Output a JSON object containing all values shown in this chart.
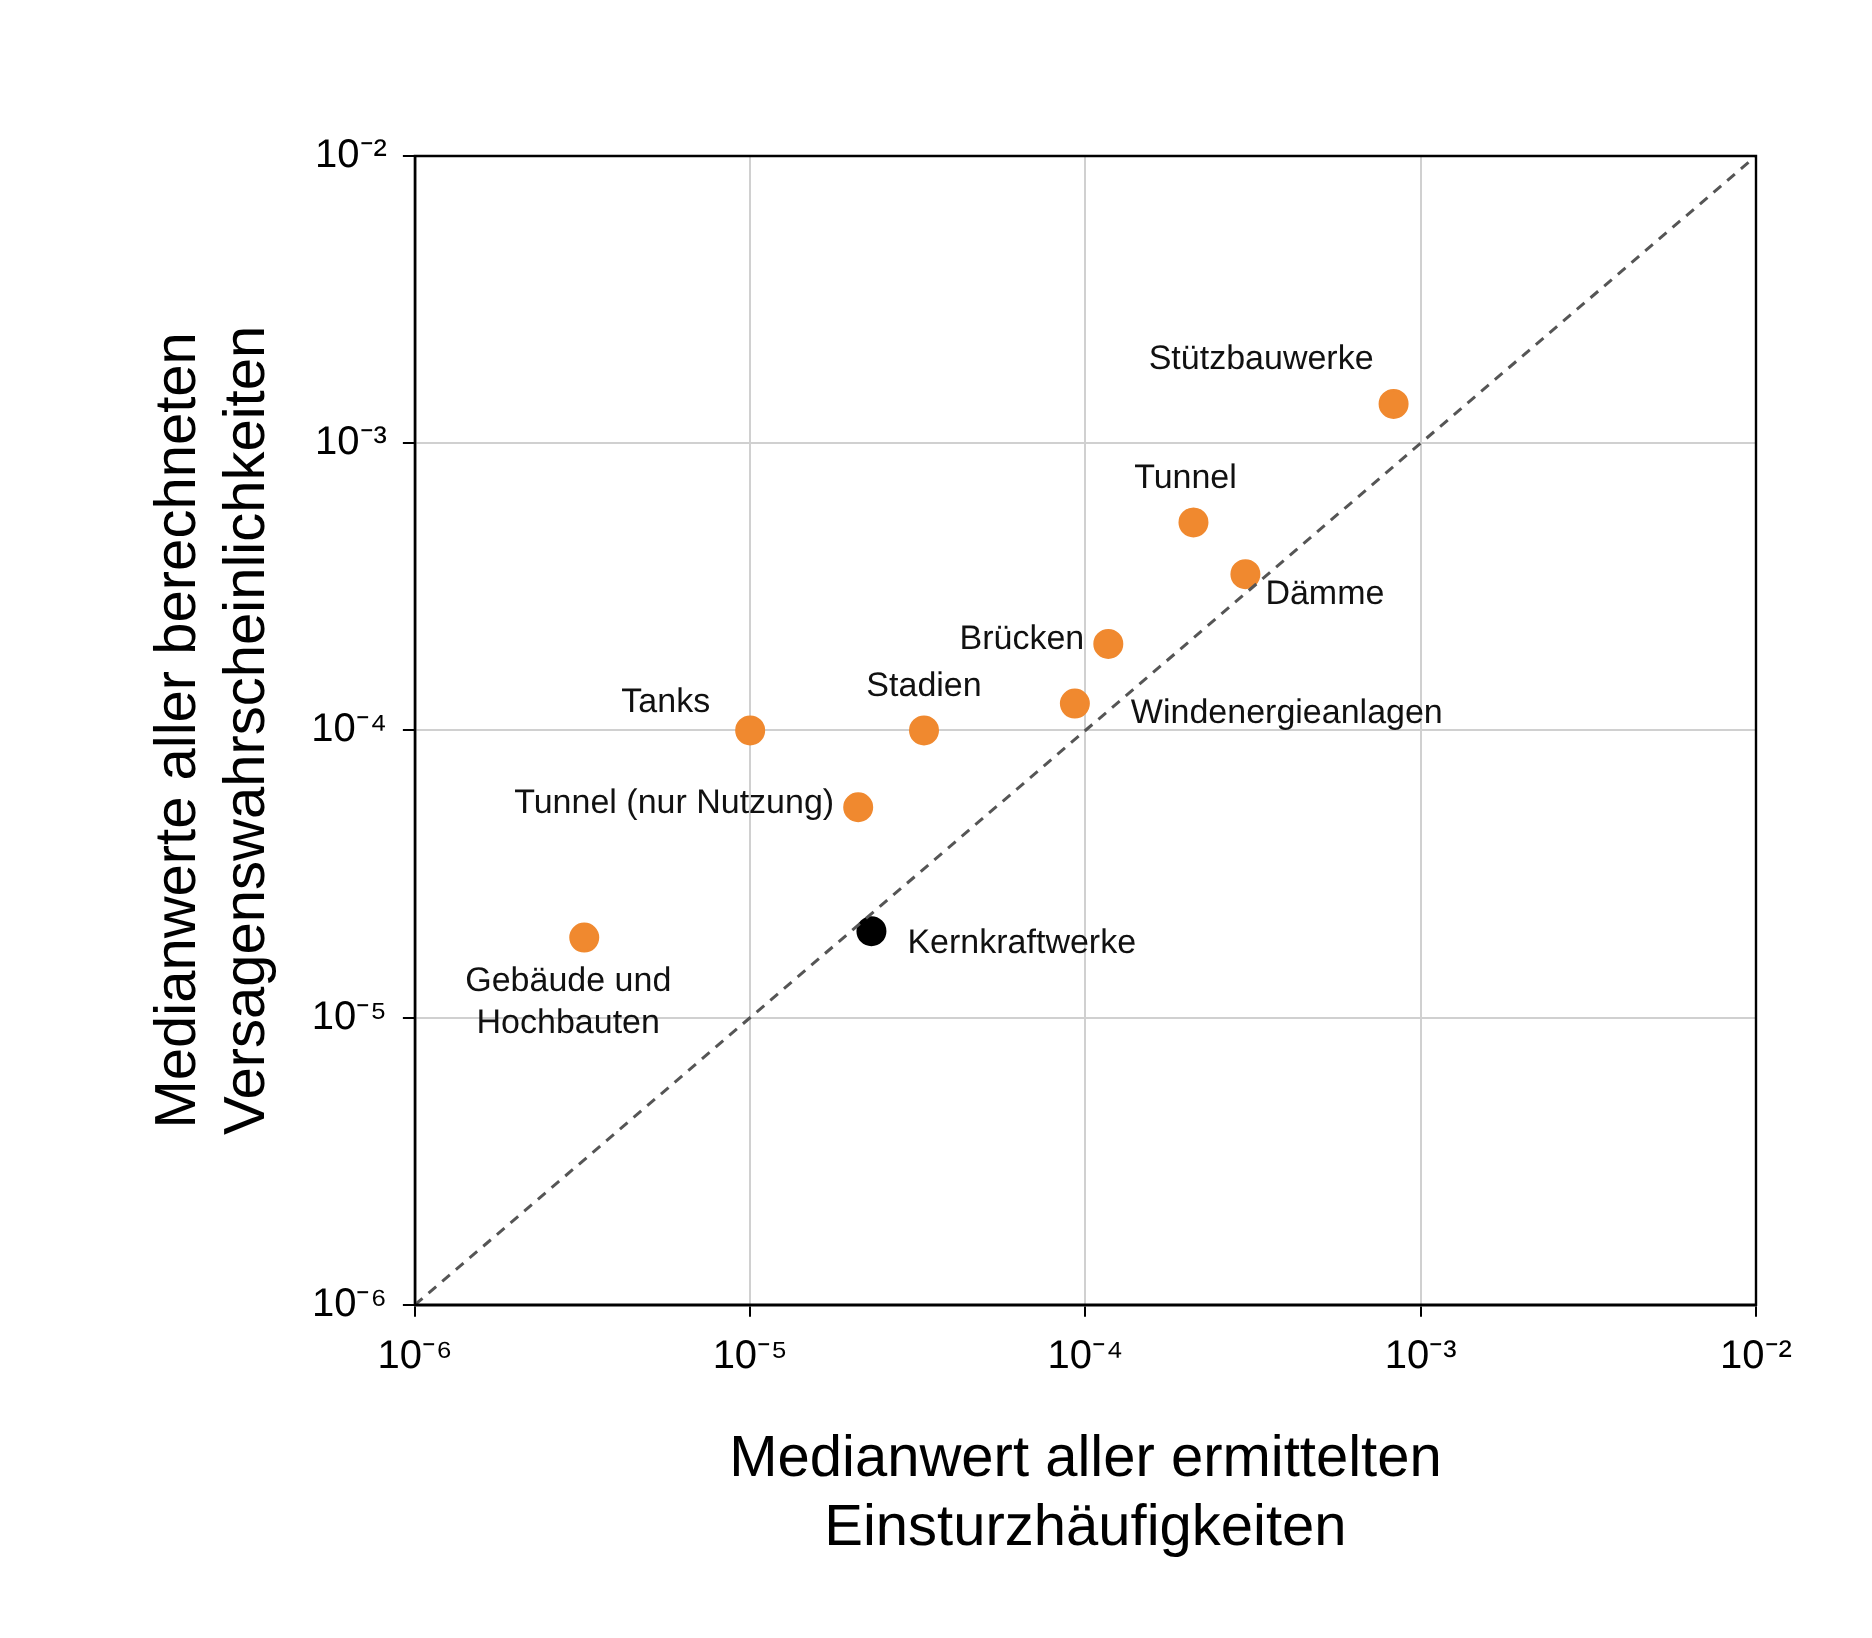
{
  "chart_data": {
    "type": "scatter",
    "xlabel": "Medianwert aller ermittelten\nEinsturzhäufigkeiten",
    "ylabel": "Medianwerte aller berechneten\nVersagenswahrscheinlichkeiten",
    "log": "xy",
    "grid": true,
    "legend": false,
    "marker": "circle",
    "xlim": [
      1e-06,
      0.01
    ],
    "ylim": [
      1e-06,
      0.01
    ],
    "xticks": [
      {
        "value": 1e-06,
        "label": "10⁻⁶"
      },
      {
        "value": 1e-05,
        "label": "10⁻⁵"
      },
      {
        "value": 0.0001,
        "label": "10⁻⁴"
      },
      {
        "value": 0.001,
        "label": "10⁻³"
      },
      {
        "value": 0.01,
        "label": "10⁻²"
      }
    ],
    "yticks": [
      {
        "value": 1e-06,
        "label": "10⁻⁶"
      },
      {
        "value": 1e-05,
        "label": "10⁻⁵"
      },
      {
        "value": 0.0001,
        "label": "10⁻⁴"
      },
      {
        "value": 0.001,
        "label": "10⁻³"
      },
      {
        "value": 0.01,
        "label": "10⁻²"
      }
    ],
    "series": [
      {
        "type": "scatter",
        "color": "#f0892f",
        "x": [
          0.00083,
          0.00021,
          0.0003,
          0.000117,
          9.3e-05,
          3.3e-05,
          1e-05,
          2.1e-05,
          3.2e-06
        ],
        "values": [
          0.00137,
          0.00053,
          0.00035,
          0.0002,
          0.000124,
          0.0001,
          0.0001,
          5.4e-05,
          1.9e-05
        ]
      },
      {
        "type": "scatter",
        "color": "#000000",
        "x": [
          2.3e-05
        ],
        "values": [
          2e-05
        ]
      },
      {
        "type": "line",
        "color": "#555555",
        "line_style": "dashed",
        "marker": "none",
        "x": [
          1e-06,
          0.01
        ],
        "values": [
          1e-06,
          0.01
        ]
      }
    ],
    "annotations": [
      {
        "text": "Stützbauwerke",
        "x": 0.00083,
        "y": 0.00137
      },
      {
        "text": "Tunnel",
        "x": 0.00021,
        "y": 0.00053
      },
      {
        "text": "Dämme",
        "x": 0.0003,
        "y": 0.00035
      },
      {
        "text": "Brücken",
        "x": 0.000117,
        "y": 0.0002
      },
      {
        "text": "Windenergieanlagen",
        "x": 9.3e-05,
        "y": 0.000124
      },
      {
        "text": "Stadien",
        "x": 3.3e-05,
        "y": 0.0001
      },
      {
        "text": "Tanks",
        "x": 1e-05,
        "y": 0.0001
      },
      {
        "text": "Tunnel (nur Nutzung)",
        "x": 2.1e-05,
        "y": 5.4e-05
      },
      {
        "text": "Gebäude und\nHochbauten",
        "x": 3.2e-06,
        "y": 1.9e-05
      },
      {
        "text": "Kernkraftwerke",
        "x": 2.3e-05,
        "y": 2e-05
      }
    ]
  }
}
